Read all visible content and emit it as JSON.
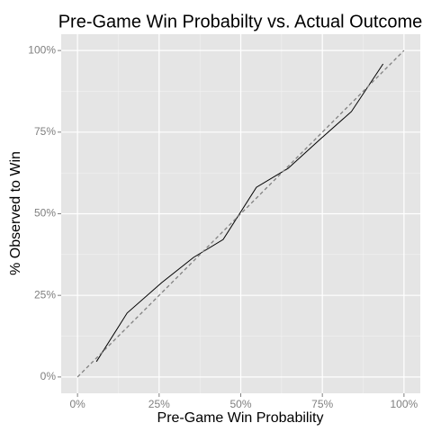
{
  "chart_data": {
    "type": "line",
    "title": "Pre-Game Win Probabilty vs. Actual Outcome",
    "x_label": "Pre-Game Win Probability",
    "y_label": "% Observed to Win",
    "xlim": [
      -5,
      105
    ],
    "ylim": [
      -5,
      105
    ],
    "xticks": [
      {
        "value": 0,
        "label": "0%"
      },
      {
        "value": 25,
        "label": "25%"
      },
      {
        "value": 50,
        "label": "50%"
      },
      {
        "value": 75,
        "label": "75%"
      },
      {
        "value": 100,
        "label": "100%"
      }
    ],
    "yticks": [
      {
        "value": 0,
        "label": "0%"
      },
      {
        "value": 25,
        "label": "25%"
      },
      {
        "value": 50,
        "label": "50%"
      },
      {
        "value": 75,
        "label": "75%"
      },
      {
        "value": 100,
        "label": "100%"
      }
    ],
    "grid": true,
    "minor_grid": true,
    "series": [
      {
        "color": "#000000",
        "linetype": "solid",
        "x": [
          5.8,
          15.2,
          25.8,
          35.5,
          44.6,
          54.8,
          64.5,
          74.2,
          83.9,
          93.6
        ],
        "values": [
          4.7,
          19.6,
          28.9,
          36.6,
          42.1,
          58.1,
          63.9,
          72.7,
          81.3,
          95.9
        ]
      },
      {
        "color": "#808080",
        "linetype": "dashed",
        "x": [
          0,
          100
        ],
        "values": [
          0,
          100
        ]
      }
    ]
  }
}
